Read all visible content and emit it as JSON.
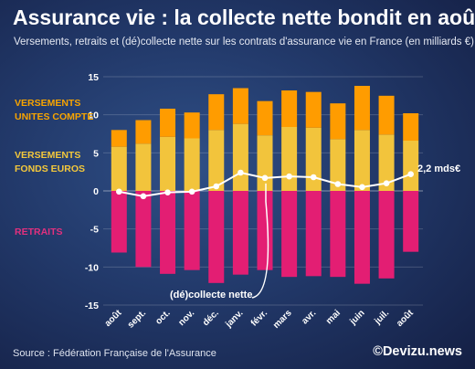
{
  "title": "Assurance vie : la collecte nette bondit en août",
  "subtitle": "Versements, retraits et (dé)collecte nette sur les contrats d'assurance vie en France (en milliards €)",
  "legend": {
    "unites_compte_line1": "VERSEMENTS",
    "unites_compte_line2": "UNITES COMPTE",
    "fonds_euros_line1": "VERSEMENTS",
    "fonds_euros_line2": "FONDS EUROS",
    "retraits": "RETRAITS"
  },
  "annotations": {
    "last_value": "2,2 mds€",
    "net_line_label": "(dé)collecte nette"
  },
  "footer": {
    "source": "Source : Fédération Française de l'Assurance",
    "brand": "©Devizu.news"
  },
  "colors": {
    "unites_compte": "#ff9c00",
    "fonds_euros": "#f2c43c",
    "retraits": "#e31e73",
    "net": "#ffffff"
  },
  "chart_data": {
    "type": "bar",
    "stacked": true,
    "categories": [
      "août",
      "sept.",
      "oct.",
      "nov.",
      "déc.",
      "janv.",
      "févr.",
      "mars",
      "avr.",
      "mai",
      "juin",
      "juil.",
      "août"
    ],
    "series": [
      {
        "name": "VERSEMENTS FONDS EUROS",
        "values": [
          5.8,
          6.2,
          7.1,
          6.9,
          8.0,
          8.8,
          7.3,
          8.4,
          8.3,
          6.8,
          8.0,
          7.4,
          6.6
        ]
      },
      {
        "name": "VERSEMENTS UNITES COMPTE",
        "values": [
          2.2,
          3.1,
          3.7,
          3.4,
          4.7,
          4.7,
          4.5,
          4.8,
          4.7,
          4.7,
          5.8,
          5.1,
          3.6
        ]
      },
      {
        "name": "RETRAITS",
        "values": [
          -8.1,
          -10.0,
          -10.9,
          -10.4,
          -12.1,
          -11.0,
          -10.4,
          -11.3,
          -11.2,
          -11.3,
          -12.2,
          -11.5,
          -8.0
        ]
      },
      {
        "name": "(dé)collecte nette",
        "type": "line",
        "values": [
          -0.1,
          -0.7,
          -0.2,
          -0.1,
          0.6,
          2.4,
          1.7,
          1.9,
          1.8,
          0.9,
          0.5,
          1.0,
          2.2
        ]
      }
    ],
    "y_ticks": [
      15,
      10,
      5,
      0,
      -5,
      -10,
      -15
    ],
    "ylim": [
      -15,
      15
    ],
    "grid": true
  }
}
